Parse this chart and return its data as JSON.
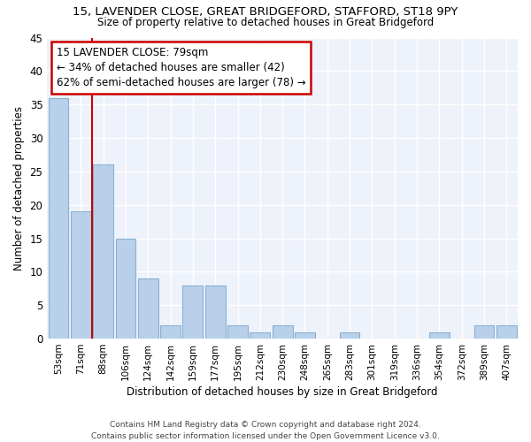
{
  "title1": "15, LAVENDER CLOSE, GREAT BRIDGEFORD, STAFFORD, ST18 9PY",
  "title2": "Size of property relative to detached houses in Great Bridgeford",
  "xlabel": "Distribution of detached houses by size in Great Bridgeford",
  "ylabel": "Number of detached properties",
  "categories": [
    "53sqm",
    "71sqm",
    "88sqm",
    "106sqm",
    "124sqm",
    "142sqm",
    "159sqm",
    "177sqm",
    "195sqm",
    "212sqm",
    "230sqm",
    "248sqm",
    "265sqm",
    "283sqm",
    "301sqm",
    "319sqm",
    "336sqm",
    "354sqm",
    "372sqm",
    "389sqm",
    "407sqm"
  ],
  "values": [
    36,
    19,
    26,
    15,
    9,
    2,
    8,
    8,
    2,
    1,
    2,
    1,
    0,
    1,
    0,
    0,
    0,
    1,
    0,
    2,
    2
  ],
  "bar_color": "#b8d0ea",
  "bar_edge_color": "#8ab0d0",
  "property_line_color": "#cc0000",
  "annotation_line1": "15 LAVENDER CLOSE: 79sqm",
  "annotation_line2": "← 34% of detached houses are smaller (42)",
  "annotation_line3": "62% of semi-detached houses are larger (78) →",
  "annotation_box_color": "#cc0000",
  "ylim": [
    0,
    45
  ],
  "yticks": [
    0,
    5,
    10,
    15,
    20,
    25,
    30,
    35,
    40,
    45
  ],
  "background_color": "#ffffff",
  "plot_bg_color": "#eef2fb",
  "footer_line1": "Contains HM Land Registry data © Crown copyright and database right 2024.",
  "footer_line2": "Contains public sector information licensed under the Open Government Licence v3.0.",
  "grid_color": "#ffffff"
}
